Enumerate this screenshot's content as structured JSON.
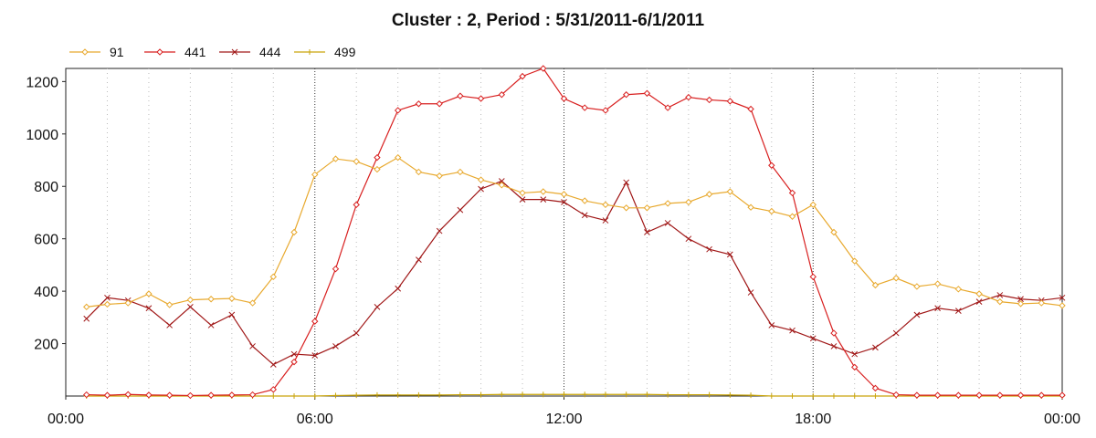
{
  "chart_data": {
    "type": "line",
    "title": "Cluster : 2, Period : 5/31/2011-6/1/2011",
    "xlabel": "",
    "ylabel": "",
    "xlim_hours": [
      0,
      24
    ],
    "ylim": [
      0,
      1250
    ],
    "x_ticks": [
      {
        "hour": 0,
        "label": "00:00"
      },
      {
        "hour": 6,
        "label": "06:00"
      },
      {
        "hour": 12,
        "label": "12:00"
      },
      {
        "hour": 18,
        "label": "18:00"
      },
      {
        "hour": 24,
        "label": "00:00"
      }
    ],
    "y_ticks": [
      200,
      400,
      600,
      800,
      1000,
      1200
    ],
    "grid": true,
    "legend_position": "top-left",
    "x_hours": [
      0.5,
      1,
      1.5,
      2,
      2.5,
      3,
      3.5,
      4,
      4.5,
      5,
      5.5,
      6,
      6.5,
      7,
      7.5,
      8,
      8.5,
      9,
      9.5,
      10,
      10.5,
      11,
      11.5,
      12,
      12.5,
      13,
      13.5,
      14,
      14.5,
      15,
      15.5,
      16,
      16.5,
      17,
      17.5,
      18,
      18.5,
      19,
      19.5,
      20,
      20.5,
      21,
      21.5,
      22,
      22.5,
      23,
      23.5,
      24
    ],
    "series": [
      {
        "name": "91",
        "color": "#e8a92e",
        "marker": "diamond",
        "values": [
          340,
          350,
          355,
          390,
          348,
          367,
          370,
          372,
          355,
          455,
          625,
          845,
          905,
          895,
          865,
          910,
          855,
          840,
          855,
          825,
          805,
          775,
          780,
          770,
          745,
          730,
          718,
          718,
          735,
          740,
          770,
          780,
          720,
          705,
          685,
          730,
          625,
          515,
          423,
          450,
          418,
          428,
          408,
          390,
          360,
          352,
          355,
          345
        ]
      },
      {
        "name": "441",
        "color": "#d81f1f",
        "marker": "diamond",
        "values": [
          5,
          3,
          6,
          4,
          3,
          2,
          3,
          4,
          5,
          25,
          130,
          285,
          485,
          730,
          910,
          1090,
          1115,
          1115,
          1145,
          1135,
          1150,
          1220,
          1250,
          1135,
          1100,
          1090,
          1150,
          1155,
          1100,
          1140,
          1130,
          1125,
          1095,
          880,
          775,
          455,
          240,
          110,
          30,
          5,
          3,
          3,
          3,
          3,
          3,
          3,
          3,
          3
        ]
      },
      {
        "name": "444",
        "color": "#a01717",
        "marker": "x",
        "values": [
          295,
          375,
          365,
          335,
          270,
          340,
          270,
          310,
          190,
          120,
          160,
          155,
          190,
          240,
          340,
          410,
          520,
          630,
          710,
          790,
          820,
          750,
          750,
          740,
          690,
          670,
          815,
          625,
          660,
          600,
          560,
          540,
          395,
          270,
          250,
          220,
          190,
          160,
          185,
          240,
          310,
          335,
          325,
          360,
          385,
          370,
          365,
          375
        ]
      },
      {
        "name": "499",
        "color": "#c9a50a",
        "marker": "plus",
        "values": [
          0,
          0,
          0,
          0,
          0,
          0,
          0,
          0,
          0,
          0,
          0,
          0,
          2,
          3,
          4,
          4,
          4,
          4,
          5,
          5,
          6,
          6,
          6,
          6,
          6,
          6,
          6,
          6,
          5,
          5,
          5,
          4,
          3,
          0,
          0,
          0,
          0,
          0,
          0,
          0,
          0,
          0,
          0,
          0,
          0,
          0,
          0,
          0
        ]
      }
    ]
  }
}
